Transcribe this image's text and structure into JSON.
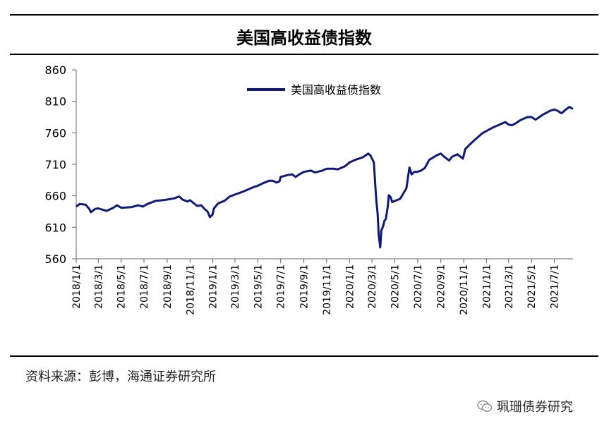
{
  "header": {
    "title": "美国高收益债指数"
  },
  "source": "资料来源：彭博，海通证券研究所",
  "watermark": {
    "text": "珮珊债券研究",
    "icon": "wechat-icon"
  },
  "chart_data": {
    "type": "line",
    "title": "美国高收益债指数",
    "ylim": [
      560,
      860
    ],
    "yticks": [
      560,
      610,
      660,
      710,
      760,
      810,
      860
    ],
    "xlim": [
      "2018-01-01",
      "2021-08-20"
    ],
    "xticks": [
      "2018/1/1",
      "2018/3/1",
      "2018/5/1",
      "2018/7/1",
      "2018/9/1",
      "2018/11/1",
      "2019/1/1",
      "2019/3/1",
      "2019/5/1",
      "2019/7/1",
      "2019/9/1",
      "2019/11/1",
      "2020/1/1",
      "2020/3/1",
      "2020/5/1",
      "2020/7/1",
      "2020/9/1",
      "2020/11/1",
      "2021/1/1",
      "2021/3/1",
      "2021/5/1",
      "2021/7/1"
    ],
    "legend": {
      "position": "top-center"
    },
    "grid": false,
    "series": [
      {
        "name": "美国高收益债指数",
        "color": "#0d1a78",
        "points": [
          [
            "2018-01-01",
            643
          ],
          [
            "2018-01-10",
            647
          ],
          [
            "2018-01-26",
            646
          ],
          [
            "2018-02-05",
            639
          ],
          [
            "2018-02-09",
            634
          ],
          [
            "2018-02-20",
            639
          ],
          [
            "2018-03-01",
            640
          ],
          [
            "2018-03-23",
            636
          ],
          [
            "2018-04-10",
            641
          ],
          [
            "2018-04-20",
            645
          ],
          [
            "2018-05-01",
            641
          ],
          [
            "2018-05-29",
            642
          ],
          [
            "2018-06-15",
            645
          ],
          [
            "2018-06-28",
            643
          ],
          [
            "2018-07-10",
            647
          ],
          [
            "2018-08-01",
            652
          ],
          [
            "2018-08-20",
            653
          ],
          [
            "2018-09-01",
            654
          ],
          [
            "2018-09-20",
            656
          ],
          [
            "2018-10-03",
            659
          ],
          [
            "2018-10-12",
            654
          ],
          [
            "2018-10-25",
            651
          ],
          [
            "2018-11-01",
            653
          ],
          [
            "2018-11-20",
            644
          ],
          [
            "2018-12-01",
            645
          ],
          [
            "2018-12-10",
            639
          ],
          [
            "2018-12-18",
            635
          ],
          [
            "2018-12-24",
            626
          ],
          [
            "2018-12-31",
            630
          ],
          [
            "2019-01-04",
            640
          ],
          [
            "2019-01-15",
            648
          ],
          [
            "2019-02-01",
            652
          ],
          [
            "2019-02-15",
            659
          ],
          [
            "2019-03-01",
            662
          ],
          [
            "2019-03-20",
            666
          ],
          [
            "2019-04-01",
            669
          ],
          [
            "2019-04-20",
            674
          ],
          [
            "2019-05-01",
            676
          ],
          [
            "2019-05-15",
            680
          ],
          [
            "2019-06-01",
            684
          ],
          [
            "2019-06-10",
            684
          ],
          [
            "2019-06-20",
            681
          ],
          [
            "2019-06-28",
            683
          ],
          [
            "2019-07-01",
            690
          ],
          [
            "2019-07-20",
            693
          ],
          [
            "2019-08-01",
            694
          ],
          [
            "2019-08-10",
            690
          ],
          [
            "2019-08-20",
            694
          ],
          [
            "2019-09-01",
            698
          ],
          [
            "2019-09-20",
            700
          ],
          [
            "2019-10-01",
            697
          ],
          [
            "2019-10-20",
            700
          ],
          [
            "2019-11-01",
            703
          ],
          [
            "2019-11-20",
            703
          ],
          [
            "2019-12-01",
            702
          ],
          [
            "2019-12-20",
            707
          ],
          [
            "2020-01-01",
            713
          ],
          [
            "2020-01-20",
            718
          ],
          [
            "2020-02-05",
            721
          ],
          [
            "2020-02-20",
            727
          ],
          [
            "2020-02-26",
            724
          ],
          [
            "2020-03-02",
            718
          ],
          [
            "2020-03-06",
            713
          ],
          [
            "2020-03-10",
            675
          ],
          [
            "2020-03-13",
            650
          ],
          [
            "2020-03-16",
            632
          ],
          [
            "2020-03-19",
            598
          ],
          [
            "2020-03-23",
            578
          ],
          [
            "2020-03-26",
            605
          ],
          [
            "2020-03-31",
            612
          ],
          [
            "2020-04-03",
            620
          ],
          [
            "2020-04-07",
            623
          ],
          [
            "2020-04-12",
            642
          ],
          [
            "2020-04-15",
            661
          ],
          [
            "2020-04-20",
            658
          ],
          [
            "2020-04-24",
            650
          ],
          [
            "2020-05-01",
            652
          ],
          [
            "2020-05-15",
            655
          ],
          [
            "2020-06-01",
            672
          ],
          [
            "2020-06-09",
            705
          ],
          [
            "2020-06-15",
            694
          ],
          [
            "2020-06-22",
            698
          ],
          [
            "2020-06-30",
            698
          ],
          [
            "2020-07-10",
            700
          ],
          [
            "2020-07-20",
            704
          ],
          [
            "2020-08-01",
            717
          ],
          [
            "2020-08-20",
            724
          ],
          [
            "2020-09-01",
            727
          ],
          [
            "2020-09-10",
            722
          ],
          [
            "2020-09-23",
            716
          ],
          [
            "2020-10-01",
            722
          ],
          [
            "2020-10-15",
            726
          ],
          [
            "2020-10-30",
            719
          ],
          [
            "2020-11-05",
            734
          ],
          [
            "2020-11-20",
            743
          ],
          [
            "2020-12-01",
            749
          ],
          [
            "2020-12-20",
            759
          ],
          [
            "2021-01-01",
            763
          ],
          [
            "2021-01-20",
            769
          ],
          [
            "2021-02-01",
            772
          ],
          [
            "2021-02-20",
            777
          ],
          [
            "2021-03-01",
            773
          ],
          [
            "2021-03-10",
            772
          ],
          [
            "2021-03-20",
            775
          ],
          [
            "2021-04-01",
            780
          ],
          [
            "2021-04-20",
            785
          ],
          [
            "2021-05-01",
            785
          ],
          [
            "2021-05-12",
            781
          ],
          [
            "2021-05-20",
            784
          ],
          [
            "2021-06-01",
            789
          ],
          [
            "2021-06-20",
            795
          ],
          [
            "2021-07-01",
            797
          ],
          [
            "2021-07-10",
            795
          ],
          [
            "2021-07-20",
            791
          ],
          [
            "2021-08-01",
            797
          ],
          [
            "2021-08-10",
            801
          ],
          [
            "2021-08-20",
            798
          ]
        ]
      }
    ]
  }
}
